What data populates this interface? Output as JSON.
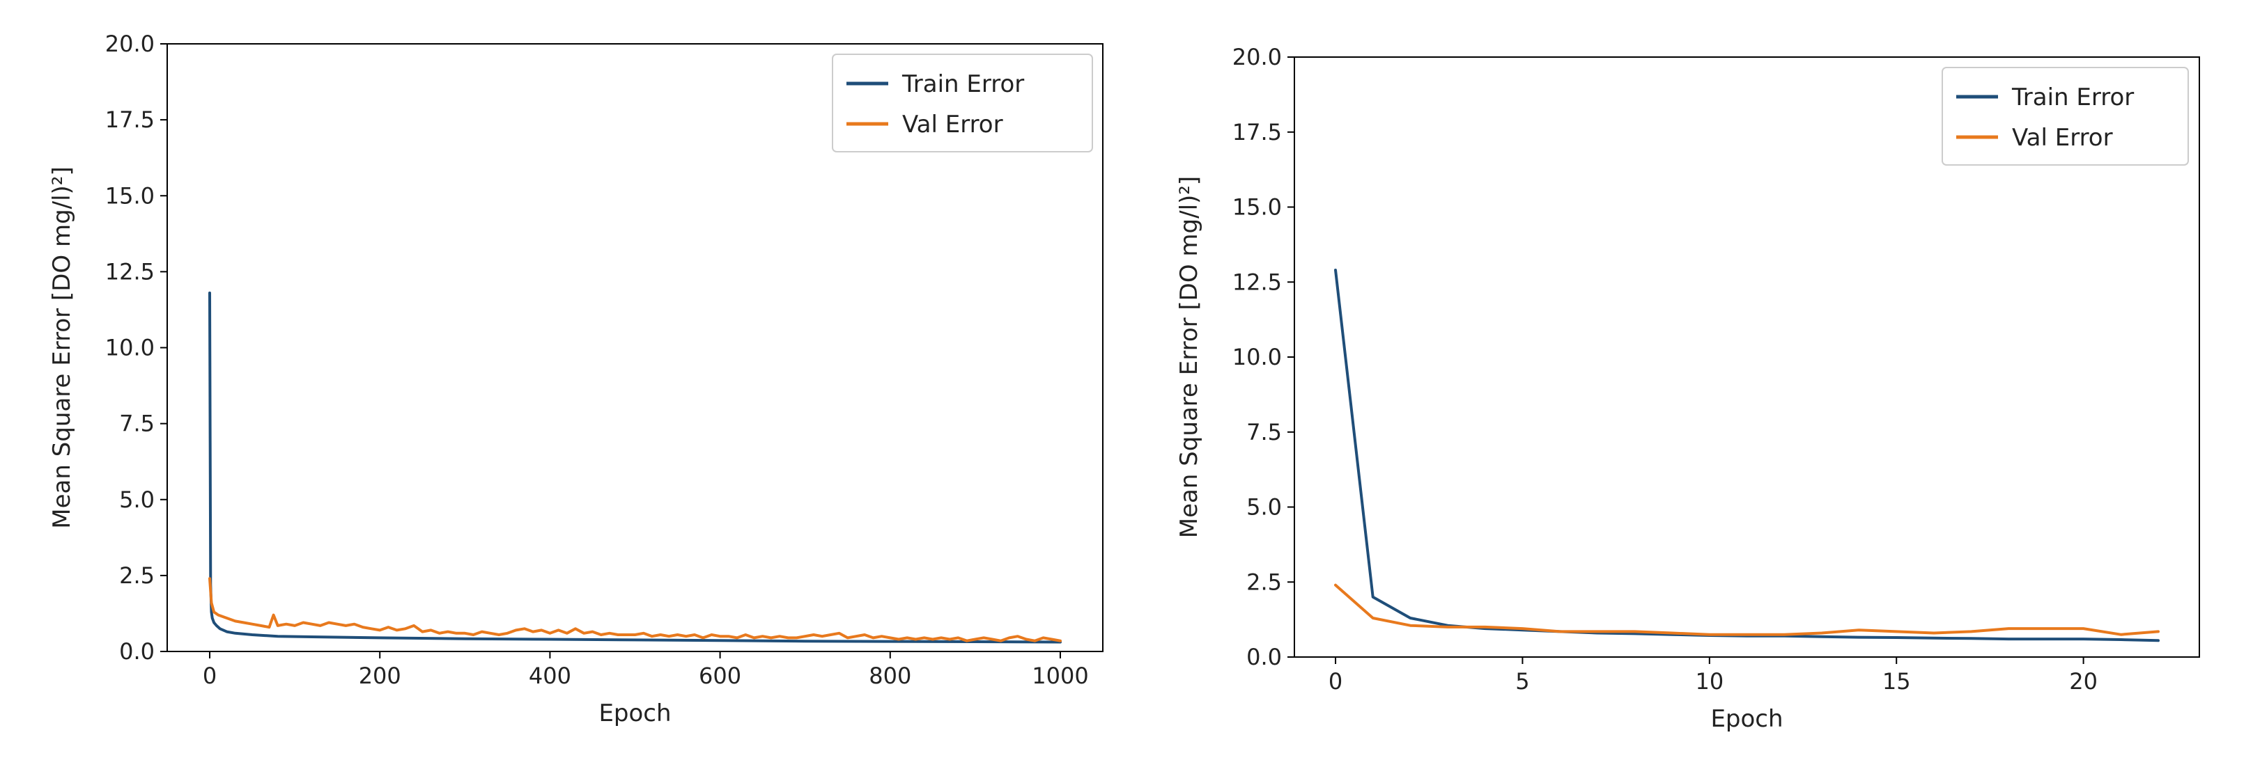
{
  "chart_data": [
    {
      "type": "line",
      "title": "",
      "xlabel": "Epoch",
      "ylabel": "Mean Square Error [DO   mg/l)²]",
      "xlim": [
        -50,
        1050
      ],
      "ylim": [
        0,
        20
      ],
      "xticks": [
        0,
        200,
        400,
        600,
        800,
        1000
      ],
      "xtick_labels": [
        "0",
        "200",
        "400",
        "600",
        "800",
        "1000"
      ],
      "yticks": [
        0,
        2.5,
        5,
        7.5,
        10,
        12.5,
        15,
        17.5,
        20
      ],
      "ytick_labels": [
        "0.0",
        "2.5",
        "5.0",
        "7.5",
        "10.0",
        "12.5",
        "15.0",
        "17.5",
        "20.0"
      ],
      "grid": false,
      "legend_position": "top-right",
      "series": [
        {
          "name": "Train Error",
          "color": "#1f4e79",
          "x": [
            0,
            1,
            2,
            3,
            5,
            8,
            12,
            20,
            30,
            50,
            80,
            120,
            200,
            300,
            400,
            500,
            600,
            700,
            800,
            900,
            1000
          ],
          "y": [
            11.8,
            2.2,
            1.3,
            1.1,
            0.95,
            0.85,
            0.75,
            0.65,
            0.6,
            0.55,
            0.5,
            0.48,
            0.45,
            0.42,
            0.4,
            0.38,
            0.36,
            0.34,
            0.33,
            0.32,
            0.31
          ]
        },
        {
          "name": "Val Error",
          "color": "#e8791d",
          "x": [
            0,
            2,
            5,
            10,
            20,
            30,
            40,
            50,
            60,
            70,
            75,
            80,
            90,
            100,
            110,
            120,
            130,
            140,
            150,
            160,
            170,
            180,
            190,
            200,
            210,
            220,
            230,
            240,
            250,
            260,
            270,
            280,
            290,
            300,
            310,
            320,
            330,
            340,
            350,
            360,
            370,
            380,
            390,
            400,
            410,
            420,
            430,
            440,
            450,
            460,
            470,
            480,
            490,
            500,
            510,
            520,
            530,
            540,
            550,
            560,
            570,
            580,
            590,
            600,
            610,
            620,
            630,
            640,
            650,
            660,
            670,
            680,
            690,
            700,
            710,
            720,
            730,
            740,
            750,
            760,
            770,
            780,
            790,
            800,
            810,
            820,
            830,
            840,
            850,
            860,
            870,
            880,
            890,
            900,
            910,
            920,
            930,
            940,
            950,
            960,
            970,
            980,
            990,
            1000
          ],
          "y": [
            2.4,
            1.6,
            1.3,
            1.2,
            1.1,
            1.0,
            0.95,
            0.9,
            0.85,
            0.8,
            1.2,
            0.85,
            0.9,
            0.85,
            0.95,
            0.9,
            0.85,
            0.95,
            0.9,
            0.85,
            0.9,
            0.8,
            0.75,
            0.7,
            0.8,
            0.7,
            0.75,
            0.85,
            0.65,
            0.7,
            0.6,
            0.65,
            0.6,
            0.6,
            0.55,
            0.65,
            0.6,
            0.55,
            0.6,
            0.7,
            0.75,
            0.65,
            0.7,
            0.6,
            0.7,
            0.6,
            0.75,
            0.6,
            0.65,
            0.55,
            0.6,
            0.55,
            0.55,
            0.55,
            0.6,
            0.5,
            0.55,
            0.5,
            0.55,
            0.5,
            0.55,
            0.45,
            0.55,
            0.5,
            0.5,
            0.45,
            0.55,
            0.45,
            0.5,
            0.45,
            0.5,
            0.45,
            0.45,
            0.5,
            0.55,
            0.5,
            0.55,
            0.6,
            0.45,
            0.5,
            0.55,
            0.45,
            0.5,
            0.45,
            0.4,
            0.45,
            0.4,
            0.45,
            0.4,
            0.45,
            0.4,
            0.45,
            0.35,
            0.4,
            0.45,
            0.4,
            0.35,
            0.45,
            0.5,
            0.4,
            0.35,
            0.45,
            0.4,
            0.35
          ]
        }
      ]
    },
    {
      "type": "line",
      "title": "",
      "xlabel": "Epoch",
      "ylabel": "Mean Square Error [DO   mg/l)²]",
      "xlim": [
        -1.1,
        23.1
      ],
      "ylim": [
        0,
        20
      ],
      "xticks": [
        0,
        5,
        10,
        15,
        20
      ],
      "xtick_labels": [
        "0",
        "5",
        "10",
        "15",
        "20"
      ],
      "yticks": [
        0,
        2.5,
        5,
        7.5,
        10,
        12.5,
        15,
        17.5,
        20
      ],
      "ytick_labels": [
        "0.0",
        "2.5",
        "5.0",
        "7.5",
        "10.0",
        "12.5",
        "15.0",
        "17.5",
        "20.0"
      ],
      "grid": false,
      "legend_position": "top-right",
      "series": [
        {
          "name": "Train Error",
          "color": "#1f4e79",
          "x": [
            0,
            1,
            2,
            3,
            4,
            5,
            6,
            7,
            8,
            9,
            10,
            11,
            12,
            13,
            14,
            15,
            16,
            17,
            18,
            19,
            20,
            21,
            22
          ],
          "y": [
            12.9,
            2.0,
            1.3,
            1.05,
            0.95,
            0.9,
            0.85,
            0.8,
            0.78,
            0.75,
            0.72,
            0.7,
            0.7,
            0.68,
            0.66,
            0.65,
            0.63,
            0.62,
            0.6,
            0.6,
            0.6,
            0.58,
            0.55
          ]
        },
        {
          "name": "Val Error",
          "color": "#e8791d",
          "x": [
            0,
            1,
            2,
            3,
            4,
            5,
            6,
            7,
            8,
            9,
            10,
            11,
            12,
            13,
            14,
            15,
            16,
            17,
            18,
            19,
            20,
            21,
            22
          ],
          "y": [
            2.4,
            1.3,
            1.05,
            1.0,
            1.0,
            0.95,
            0.85,
            0.85,
            0.85,
            0.8,
            0.75,
            0.75,
            0.75,
            0.8,
            0.9,
            0.85,
            0.8,
            0.85,
            0.95,
            0.95,
            0.95,
            0.75,
            0.85
          ]
        }
      ]
    }
  ]
}
